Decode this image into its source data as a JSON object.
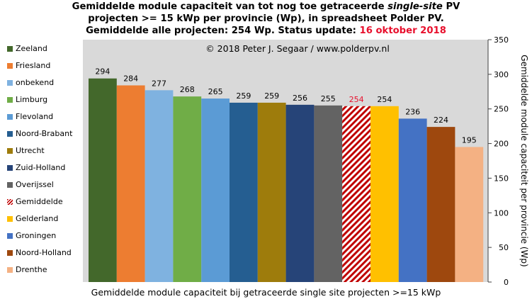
{
  "title": {
    "line1_pre": "Gemiddelde module capaciteit van tot nog toe getraceerde ",
    "line1_em": "single-site",
    "line1_post": " PV",
    "line2": "projecten >= 15 kWp per provincie (Wp), in spreadsheet Polder PV.",
    "line3_pre": "Gemiddelde alle projecten: 254 Wp. Status update: ",
    "line3_date": "16 oktober 2018"
  },
  "chart_data": {
    "type": "bar",
    "categories": [
      "Zeeland",
      "Friesland",
      "onbekend",
      "Limburg",
      "Flevoland",
      "Noord-Brabant",
      "Utrecht",
      "Zuid-Holland",
      "Overijssel",
      "Gemiddelde",
      "Gelderland",
      "Groningen",
      "Noord-Holland",
      "Drenthe"
    ],
    "values": [
      294,
      284,
      277,
      268,
      265,
      259,
      259,
      256,
      255,
      254,
      254,
      236,
      224,
      195
    ],
    "colors": [
      "#43682b",
      "#ed7d31",
      "#7fb2e0",
      "#70ad47",
      "#5b9bd5",
      "#255e91",
      "#9e7c0c",
      "#264478",
      "#636363",
      "#c00000",
      "#ffc000",
      "#4472c4",
      "#9e480e",
      "#f4b183"
    ],
    "hatched": "Gemiddelde",
    "ylim": [
      0,
      350
    ],
    "yticks": [
      0,
      50,
      100,
      150,
      200,
      250,
      300,
      350
    ],
    "ylabel": "Gemiddelde module capaciteit per provincie (Wp)",
    "xlabel": "Gemiddelde module capaciteit bij getraceerde single site projecten >=15 kWp",
    "annotation": "© 2018 Peter J. Segaar / www.polderpv.nl",
    "legend_position": "left",
    "grid": false
  }
}
